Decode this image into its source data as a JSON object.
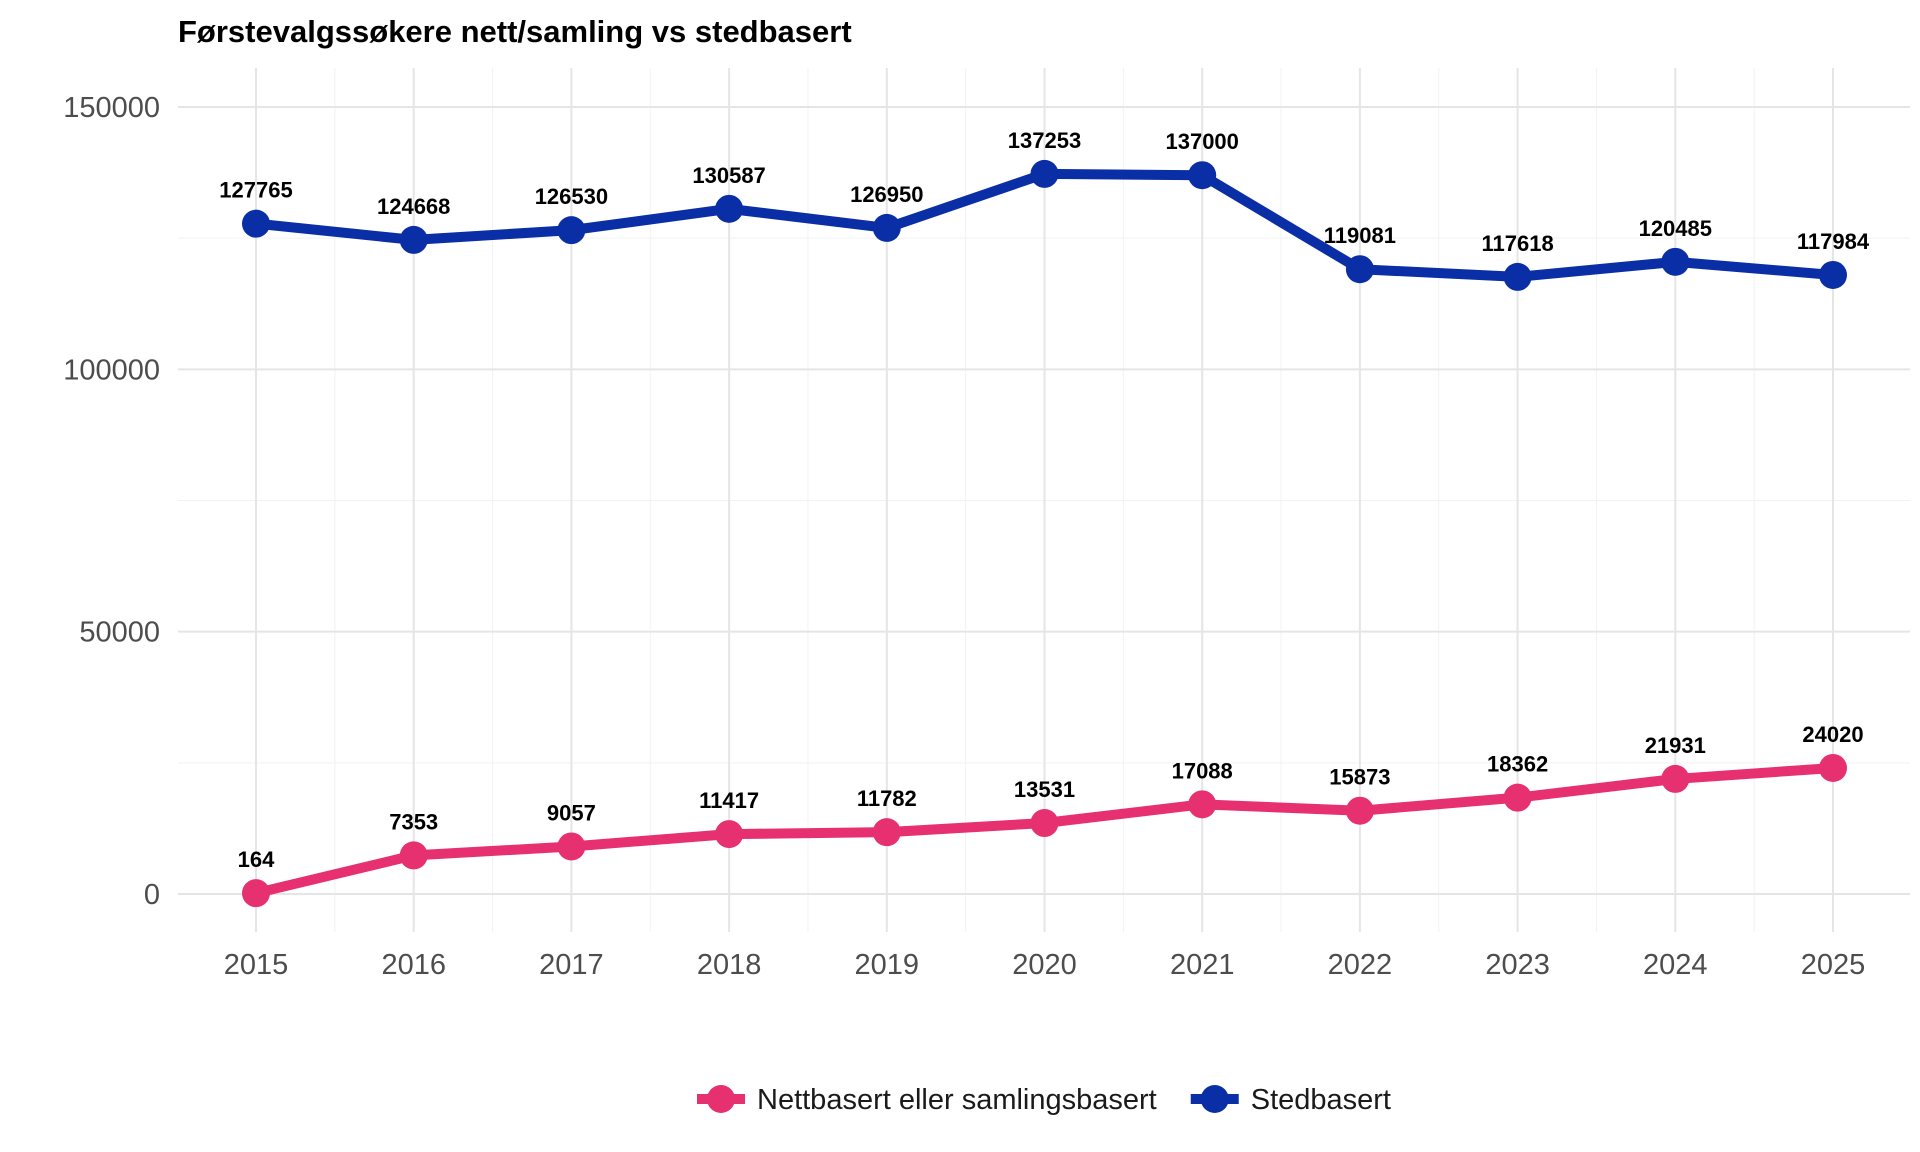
{
  "chart_data": {
    "type": "line",
    "title": "Førstevalgssøkere nett/samling vs stedbasert",
    "xlabel": "",
    "ylabel": "",
    "x": [
      "2015",
      "2016",
      "2017",
      "2018",
      "2019",
      "2020",
      "2021",
      "2022",
      "2023",
      "2024",
      "2025"
    ],
    "ylim": [
      -10000,
      160000
    ],
    "yticks": [
      "0",
      "50000",
      "100000",
      "150000"
    ],
    "grid": true,
    "legend_position": "bottom",
    "series": [
      {
        "name": "Nettbasert eller samlingsbasert",
        "color": "#e6306f",
        "values": [
          164,
          7353,
          9057,
          11417,
          11782,
          13531,
          17088,
          15873,
          18362,
          21931,
          24020
        ],
        "labels": [
          "164",
          "7353",
          "9057",
          "11417",
          "11782",
          "13531",
          "17088",
          "15873",
          "18362",
          "21931",
          "24020"
        ]
      },
      {
        "name": "Stedbasert",
        "color": "#0a2ea5",
        "values": [
          127765,
          124668,
          126530,
          130587,
          126950,
          137253,
          137000,
          119081,
          117618,
          120485,
          117984
        ],
        "labels": [
          "127765",
          "124668",
          "126530",
          "130587",
          "126950",
          "137253",
          "137000",
          "119081",
          "117618",
          "120485",
          "117984"
        ]
      }
    ]
  }
}
